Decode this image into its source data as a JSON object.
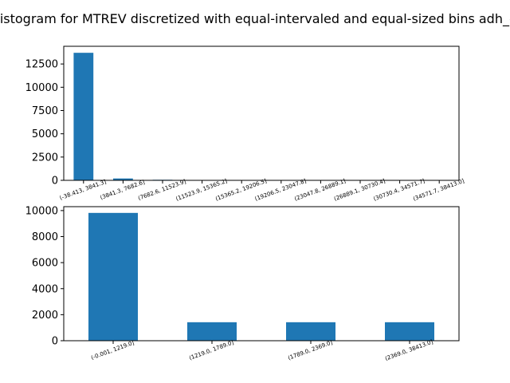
{
  "figure": {
    "title": "Histogram for MTREV discretized with equal-intervaled and equal-sized bins adh_cl"
  },
  "colors": {
    "bar": "#1f77b4",
    "axis": "#000000",
    "background": "#ffffff"
  },
  "chart_data": [
    {
      "type": "bar",
      "categories": [
        "(-38.413, 3841.3]",
        "(3841.3, 7682.6]",
        "(7682.6, 11523.9]",
        "(11523.9, 15365.2]",
        "(15365.2, 19206.5]",
        "(19206.5, 23047.8]",
        "(23047.8, 26889.1]",
        "(26889.1, 30730.4]",
        "(30730.4, 34571.7]",
        "(34571.7, 38413.0]"
      ],
      "values": [
        13700,
        200,
        60,
        15,
        8,
        5,
        3,
        2,
        1,
        1
      ],
      "ylim": [
        0,
        14400
      ],
      "yticks": [
        0,
        2500,
        5000,
        7500,
        10000,
        12500
      ],
      "ytick_labels": [
        "0",
        "2500",
        "5000",
        "7500",
        "10000",
        "12500"
      ],
      "grid": false
    },
    {
      "type": "bar",
      "categories": [
        "(-0.001, 1219.0]",
        "(1219.0, 1789.0]",
        "(1789.0, 2369.0]",
        "(2369.0, 38413.0]"
      ],
      "values": [
        9820,
        1420,
        1420,
        1420
      ],
      "ylim": [
        0,
        10300
      ],
      "yticks": [
        0,
        2000,
        4000,
        6000,
        8000,
        10000
      ],
      "ytick_labels": [
        "0",
        "2000",
        "4000",
        "6000",
        "8000",
        "10000"
      ],
      "grid": false
    }
  ]
}
